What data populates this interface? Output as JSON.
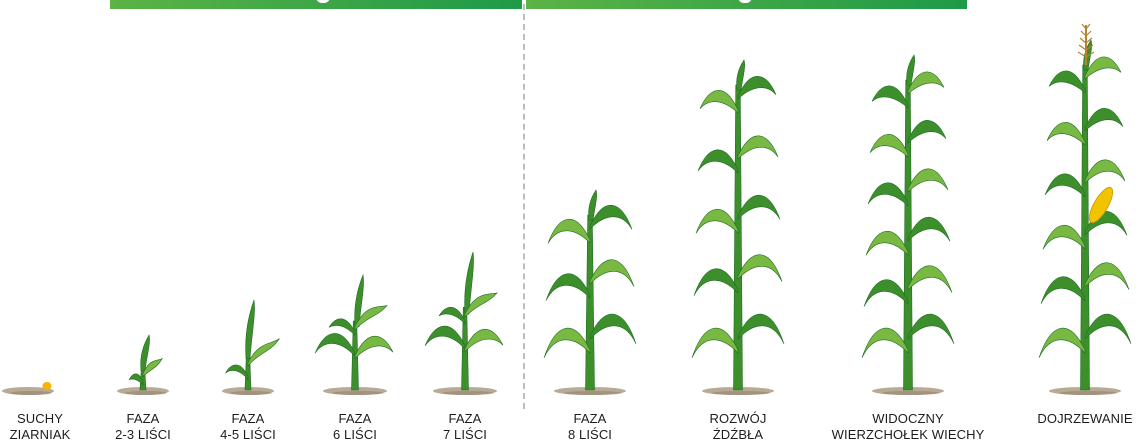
{
  "colors": {
    "band_start": "#5cb346",
    "band_end": "#1e9a48",
    "leaf_dark": "#1f6d22",
    "leaf_mid": "#3d8f2c",
    "leaf_light": "#79b843",
    "soil": "#b8aa95",
    "soil_shadow": "#8f806c",
    "kernel": "#f4b400",
    "tassel": "#b8832e",
    "cob": "#f2c400",
    "label_text": "#1d1d1b"
  },
  "stages": [
    {
      "id": "suchy-ziarniak",
      "line1": "SUCHY",
      "line2": "ZIARNIAK",
      "plant": "kernel",
      "height": 0,
      "leaf_pairs": 0
    },
    {
      "id": "faza-2-3",
      "line1": "FAZA",
      "line2": "2-3 LIŚCI",
      "plant": "sprout",
      "height": 55,
      "leaf_pairs": 1
    },
    {
      "id": "faza-4-5",
      "line1": "FAZA",
      "line2": "4-5 LIŚCI",
      "plant": "sprout",
      "height": 90,
      "leaf_pairs": 1
    },
    {
      "id": "faza-6",
      "line1": "FAZA",
      "line2": "6 LIŚCI",
      "plant": "young",
      "height": 115,
      "leaf_pairs": 2
    },
    {
      "id": "faza-7",
      "line1": "FAZA",
      "line2": "7 LIŚCI",
      "plant": "young",
      "height": 138,
      "leaf_pairs": 2
    },
    {
      "id": "faza-8",
      "line1": "FAZA",
      "line2": "8 LIŚCI",
      "plant": "tall",
      "height": 195,
      "leaf_pairs": 3
    },
    {
      "id": "rozwoj-zdzbla",
      "line1": "ROZWÓJ",
      "line2": "ŹDŹBŁA",
      "plant": "tall",
      "height": 325,
      "leaf_pairs": 5
    },
    {
      "id": "wierzcholek-wiechy",
      "line1": "WIDOCZNY",
      "line2": "WIERZCHOŁEK WIECHY",
      "plant": "tall",
      "height": 330,
      "leaf_pairs": 6
    },
    {
      "id": "dojrzewanie",
      "line1": "DOJRZEWANIE",
      "line2": "",
      "plant": "mature",
      "height": 370,
      "leaf_pairs": 6
    }
  ]
}
